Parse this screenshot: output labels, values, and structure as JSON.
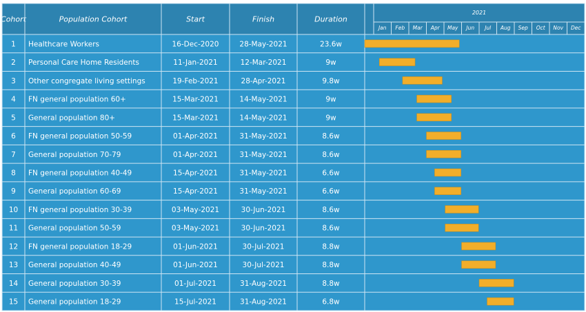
{
  "chart_data": {
    "type": "gantt",
    "year": "2021",
    "columns": {
      "cohort": "Cohort",
      "population": "Population Cohort",
      "start": "Start",
      "finish": "Finish",
      "duration": "Duration"
    },
    "months": [
      "Jan",
      "Feb",
      "Mar",
      "Apr",
      "May",
      "Jun",
      "Jul",
      "Aug",
      "Sep",
      "Oct",
      "Nov",
      "Dec"
    ],
    "x_range": [
      "2020-12-16",
      "2021-12-31"
    ],
    "rows": [
      {
        "id": "1",
        "name": "Healthcare Workers",
        "start": "16-Dec-2020",
        "finish": "28-May-2021",
        "duration": "23.6w",
        "start_iso": "2020-12-16",
        "finish_iso": "2021-05-28"
      },
      {
        "id": "2",
        "name": "Personal Care Home Residents",
        "start": "11-Jan-2021",
        "finish": "12-Mar-2021",
        "duration": "9w",
        "start_iso": "2021-01-11",
        "finish_iso": "2021-03-12"
      },
      {
        "id": "3",
        "name": "Other congregate living settings",
        "start": "19-Feb-2021",
        "finish": "28-Apr-2021",
        "duration": "9.8w",
        "start_iso": "2021-02-19",
        "finish_iso": "2021-04-28"
      },
      {
        "id": "4",
        "name": "FN general population 60+",
        "start": "15-Mar-2021",
        "finish": "14-May-2021",
        "duration": "9w",
        "start_iso": "2021-03-15",
        "finish_iso": "2021-05-14"
      },
      {
        "id": "5",
        "name": "General population 80+",
        "start": "15-Mar-2021",
        "finish": "14-May-2021",
        "duration": "9w",
        "start_iso": "2021-03-15",
        "finish_iso": "2021-05-14"
      },
      {
        "id": "6",
        "name": "FN general population 50-59",
        "start": "01-Apr-2021",
        "finish": "31-May-2021",
        "duration": "8.6w",
        "start_iso": "2021-04-01",
        "finish_iso": "2021-05-31"
      },
      {
        "id": "7",
        "name": "General population 70-79",
        "start": "01-Apr-2021",
        "finish": "31-May-2021",
        "duration": "8.6w",
        "start_iso": "2021-04-01",
        "finish_iso": "2021-05-31"
      },
      {
        "id": "8",
        "name": "FN general population 40-49",
        "start": "15-Apr-2021",
        "finish": "31-May-2021",
        "duration": "6.6w",
        "start_iso": "2021-04-15",
        "finish_iso": "2021-05-31"
      },
      {
        "id": "9",
        "name": "General population 60-69",
        "start": "15-Apr-2021",
        "finish": "31-May-2021",
        "duration": "6.6w",
        "start_iso": "2021-04-15",
        "finish_iso": "2021-05-31"
      },
      {
        "id": "10",
        "name": "FN general population 30-39",
        "start": "03-May-2021",
        "finish": "30-Jun-2021",
        "duration": "8.6w",
        "start_iso": "2021-05-03",
        "finish_iso": "2021-06-30"
      },
      {
        "id": "11",
        "name": "General population 50-59",
        "start": "03-May-2021",
        "finish": "30-Jun-2021",
        "duration": "8.6w",
        "start_iso": "2021-05-03",
        "finish_iso": "2021-06-30"
      },
      {
        "id": "12",
        "name": "FN general population 18-29",
        "start": "01-Jun-2021",
        "finish": "30-Jul-2021",
        "duration": "8.8w",
        "start_iso": "2021-06-01",
        "finish_iso": "2021-07-30"
      },
      {
        "id": "13",
        "name": "General population 40-49",
        "start": "01-Jun-2021",
        "finish": "30-Jul-2021",
        "duration": "8.8w",
        "start_iso": "2021-06-01",
        "finish_iso": "2021-07-30"
      },
      {
        "id": "14",
        "name": "General population 30-39",
        "start": "01-Jul-2021",
        "finish": "31-Aug-2021",
        "duration": "8.8w",
        "start_iso": "2021-07-01",
        "finish_iso": "2021-08-31"
      },
      {
        "id": "15",
        "name": "General population 18-29",
        "start": "15-Jul-2021",
        "finish": "31-Aug-2021",
        "duration": "6.8w",
        "start_iso": "2021-07-15",
        "finish_iso": "2021-08-31"
      }
    ],
    "colors": {
      "header": "#2d83b0",
      "cell": "#2f97cc",
      "bar": "#f2ae2a",
      "grid": "#cfe6f3",
      "text": "#ffffff"
    }
  }
}
